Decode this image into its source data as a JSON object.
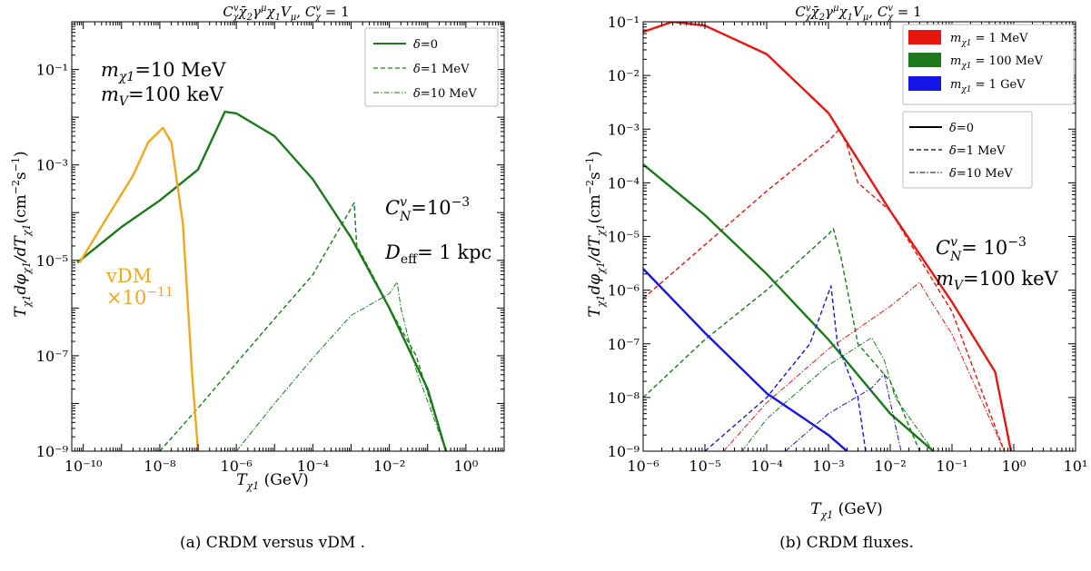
{
  "chart_data": [
    {
      "type": "line",
      "title": "C^v_χ χ̄₂γ^μχ₁V_μ, C^v_χ = 1",
      "xlabel": "T_χ1 (GeV)",
      "ylabel": "T_χ1 dφ_χ1/dT_χ1 (cm⁻²s⁻¹)",
      "xscale": "log",
      "yscale": "log",
      "xlim": [
        5e-11,
        10
      ],
      "ylim": [
        1e-09,
        1
      ],
      "xticks": [
        "10⁻¹⁰",
        "10⁻⁸",
        "10⁻⁶",
        "10⁻⁴",
        "10⁻²",
        "10⁰"
      ],
      "yticks": [
        "10⁻⁹",
        "10⁻⁷",
        "10⁻⁵",
        "10⁻³",
        "10⁻¹"
      ],
      "legend": {
        "placement": "top-right",
        "entries": [
          "δ=0",
          "δ=1 MeV",
          "δ=10 MeV"
        ]
      },
      "annotations": {
        "mass_chi": "m_χ1=10 MeV",
        "mass_v": "m_V=100 keV",
        "coupling": "C^v_N=10⁻³",
        "distance": "D_eff= 1 kpc",
        "vdm_line1": "vDM",
        "vdm_line2": "×10⁻¹¹"
      },
      "series": [
        {
          "name": "δ=0",
          "color": "#1a7a1a",
          "style": "solid",
          "x": [
            7e-11,
            1e-09,
            1e-08,
            1e-07,
            5e-07,
            1e-06,
            1e-05,
            0.0001,
            0.001,
            0.01,
            0.1,
            0.3
          ],
          "y": [
            9e-06,
            5e-05,
            0.00018,
            0.0008,
            0.013,
            0.012,
            0.004,
            0.0005,
            3e-05,
            1e-06,
            2e-08,
            1e-09
          ]
        },
        {
          "name": "δ=1 MeV",
          "color": "#1a7a1a",
          "style": "dashed",
          "x": [
            1e-08,
            1e-07,
            1e-06,
            1e-05,
            0.0001,
            0.0012,
            0.0014,
            0.002,
            0.005,
            0.01,
            0.05,
            0.3
          ],
          "y": [
            1e-09,
            8e-09,
            7e-08,
            6e-07,
            5e-06,
            0.00016,
            2e-05,
            1.2e-05,
            3e-06,
            1e-06,
            1e-07,
            1e-09
          ]
        },
        {
          "name": "δ=10 MeV",
          "color": "#1a7a1a",
          "style": "dashdot",
          "x": [
            1e-06,
            1e-05,
            0.0001,
            0.001,
            0.01,
            0.016,
            0.02,
            0.05,
            0.3
          ],
          "y": [
            1e-09,
            1e-08,
            9e-08,
            7e-07,
            2e-06,
            3.5e-06,
            1e-06,
            5e-08,
            1e-09
          ]
        },
        {
          "name": "vDM ×10⁻¹¹",
          "color": "#f2a81d",
          "style": "solid",
          "x": [
            8e-11,
            5e-10,
            2e-09,
            5e-09,
            1.2e-08,
            2e-08,
            4e-08,
            7e-08,
            1e-07
          ],
          "y": [
            9e-06,
            0.0001,
            0.0006,
            0.003,
            0.006,
            0.003,
            6e-05,
            4e-08,
            1e-09
          ]
        }
      ]
    },
    {
      "type": "line",
      "title": "C^v_χ χ̄₂γ^μχ₁V_μ, C^v_χ = 1",
      "xlabel": "T_χ1 (GeV)",
      "ylabel": "T_χ1 dφ_χ1/dT_χ1 (cm⁻²s⁻¹)",
      "xscale": "log",
      "yscale": "log",
      "xlim": [
        1e-06,
        10
      ],
      "ylim": [
        1e-09,
        0.1
      ],
      "xticks": [
        "10⁻⁶",
        "10⁻⁵",
        "10⁻⁴",
        "10⁻³",
        "10⁻²",
        "10⁻¹",
        "10⁰",
        "10¹"
      ],
      "yticks": [
        "10⁻⁹",
        "10⁻⁸",
        "10⁻⁷",
        "10⁻⁶",
        "10⁻⁵",
        "10⁻⁴",
        "10⁻³",
        "10⁻²",
        "10⁻¹"
      ],
      "legend_mass": {
        "placement": "top-right",
        "entries": [
          {
            "label": "m_χ1 = 1 MeV",
            "color": "#e8160e"
          },
          {
            "label": "m_χ1 = 100 MeV",
            "color": "#1a7a1a"
          },
          {
            "label": "m_χ1 = 1 GeV",
            "color": "#1414e6"
          }
        ]
      },
      "legend_delta": {
        "placement": "upper-right",
        "entries": [
          "δ=0",
          "δ=1 MeV",
          "δ=10 MeV"
        ]
      },
      "annotations": {
        "coupling": "C^v_N= 10⁻³",
        "mass_v": "m_V=100 keV"
      },
      "series": [
        {
          "name": "m_χ1 = 1 MeV, δ=0",
          "color": "#e8160e",
          "style": "solid",
          "x": [
            1e-06,
            3e-06,
            1e-05,
            0.0001,
            0.001,
            0.01,
            0.1,
            0.5,
            0.9
          ],
          "y": [
            0.065,
            0.1,
            0.085,
            0.025,
            0.002,
            3e-05,
            6e-07,
            3e-08,
            1e-09
          ]
        },
        {
          "name": "m_χ1 = 1 MeV, δ=1 MeV",
          "color": "#e8160e",
          "style": "dashed",
          "x": [
            1e-06,
            1e-05,
            0.0001,
            0.001,
            0.0015,
            0.002,
            0.003,
            0.01,
            0.1,
            0.7
          ],
          "y": [
            7e-07,
            7e-06,
            7e-05,
            0.0006,
            0.001,
            0.0005,
            0.0001,
            3e-05,
            4e-07,
            1e-09
          ]
        },
        {
          "name": "m_χ1 = 1 MeV, δ=10 MeV",
          "color": "#e8160e",
          "style": "dashdot",
          "x": [
            2e-05,
            0.0001,
            0.001,
            0.01,
            0.03,
            0.04,
            0.1,
            0.7
          ],
          "y": [
            1e-09,
            8e-09,
            8e-08,
            5e-07,
            1.4e-06,
            8e-07,
            1.5e-07,
            1e-09
          ]
        },
        {
          "name": "m_χ1 = 100 MeV, δ=0",
          "color": "#1a7a1a",
          "style": "solid",
          "x": [
            1e-06,
            1e-05,
            0.0001,
            0.001,
            0.01,
            0.05
          ],
          "y": [
            0.00022,
            2.5e-05,
            2e-06,
            1.2e-07,
            5e-09,
            1e-09
          ]
        },
        {
          "name": "m_χ1 = 100 MeV, δ=1 MeV",
          "color": "#1a7a1a",
          "style": "dashed",
          "x": [
            1e-06,
            1e-05,
            0.0001,
            0.001,
            0.0012,
            0.0016,
            0.003,
            0.01,
            0.03
          ],
          "y": [
            1e-08,
            1.2e-07,
            1e-06,
            1.1e-05,
            1.4e-05,
            4e-06,
            1e-07,
            2e-08,
            1e-09
          ]
        },
        {
          "name": "m_χ1 = 100 MeV, δ=10 MeV",
          "color": "#1a7a1a",
          "style": "dashdot",
          "x": [
            4e-05,
            0.0001,
            0.001,
            0.005,
            0.008,
            0.012,
            0.05
          ],
          "y": [
            1e-09,
            4e-09,
            4e-08,
            1.3e-07,
            5e-08,
            1e-08,
            1e-09
          ]
        },
        {
          "name": "m_χ1 = 1 GeV, δ=0",
          "color": "#1414e6",
          "style": "solid",
          "x": [
            1e-06,
            1e-05,
            0.0001,
            0.001,
            0.002
          ],
          "y": [
            2.5e-06,
            1.6e-07,
            1.2e-08,
            2e-09,
            1e-09
          ]
        },
        {
          "name": "m_χ1 = 1 GeV, δ=1 MeV",
          "color": "#1414e6",
          "style": "dashed",
          "x": [
            1e-05,
            0.0001,
            0.0005,
            0.0011,
            0.0014,
            0.003,
            0.004
          ],
          "y": [
            1e-09,
            1e-08,
            1e-07,
            1.2e-06,
            1e-07,
            1e-08,
            1e-09
          ]
        },
        {
          "name": "m_χ1 = 1 GeV, δ=10 MeV",
          "color": "#1414e6",
          "style": "dashdot",
          "x": [
            0.0002,
            0.001,
            0.005,
            0.008,
            0.011,
            0.015
          ],
          "y": [
            1e-09,
            5e-09,
            1.5e-08,
            2.7e-08,
            5e-09,
            1e-09
          ]
        }
      ]
    }
  ],
  "captions": {
    "left": "(a) CRDM versus vDM .",
    "right": "(b) CRDM fluxes."
  }
}
